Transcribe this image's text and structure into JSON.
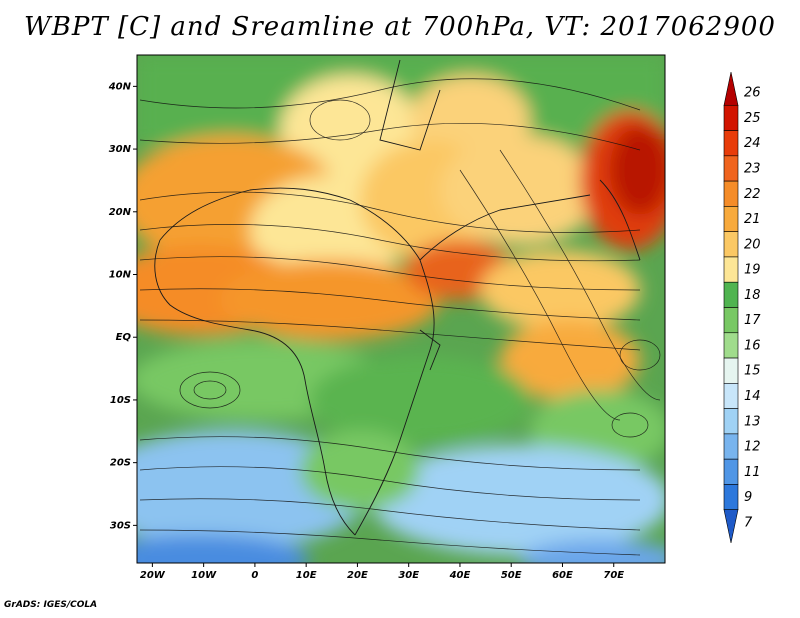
{
  "title": "WBPT [C] and Sreamline at 700hPa, VT: 2017062900",
  "credit": "GrADS: IGES/COLA",
  "map": {
    "lat_ticks": [
      "40N",
      "30N",
      "20N",
      "10N",
      "EQ",
      "10S",
      "20S",
      "30S"
    ],
    "lon_ticks": [
      "20W",
      "10W",
      "0",
      "10E",
      "20E",
      "30E",
      "40E",
      "50E",
      "60E",
      "70E"
    ],
    "lat_range": [
      -36,
      45
    ],
    "lon_range": [
      -23,
      80
    ]
  },
  "colorbar": {
    "labels": [
      "26",
      "25",
      "24",
      "23",
      "22",
      "21",
      "20",
      "19",
      "18",
      "17",
      "16",
      "15",
      "14",
      "13",
      "12",
      "11",
      "9",
      "7"
    ],
    "colors": [
      "#b40000",
      "#d21400",
      "#e83c0a",
      "#f0641e",
      "#f58c28",
      "#f8aa3c",
      "#fbc864",
      "#fde696",
      "#50b450",
      "#78c864",
      "#a0dc8c",
      "#e6f5f0",
      "#c8e6fa",
      "#a0d2f5",
      "#78b4ee",
      "#5096e6",
      "#2d78dc",
      "#1e5ac8"
    ]
  }
}
